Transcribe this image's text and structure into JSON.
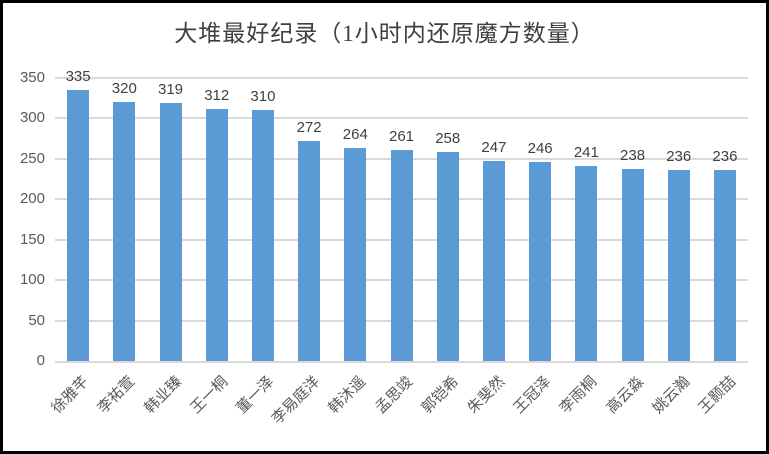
{
  "chart_data": {
    "type": "bar",
    "title": "大堆最好纪录（1小时内还原魔方数量）",
    "categories": [
      "徐雅芊",
      "李祐萱",
      "韩业臻",
      "王一桐",
      "董一泽",
      "李易庭洋",
      "韩沐遥",
      "孟思竣",
      "郭铠希",
      "朱斐然",
      "王冠泽",
      "李雨桐",
      "高云淼",
      "姚云瀚",
      "王颢喆"
    ],
    "values": [
      335,
      320,
      319,
      312,
      310,
      272,
      264,
      261,
      258,
      247,
      246,
      241,
      238,
      236,
      236
    ],
    "xlabel": "",
    "ylabel": "",
    "ylim": [
      0,
      350
    ],
    "yticks": [
      0,
      50,
      100,
      150,
      200,
      250,
      300,
      350
    ],
    "grid": true,
    "legend": false,
    "data_labels": true,
    "bar_color": "#5b9bd5",
    "value_label_color": "#404040",
    "axis_label_color": "#595959",
    "gridline_color": "#d9d9d9",
    "title_color": "#3f3f3f"
  }
}
